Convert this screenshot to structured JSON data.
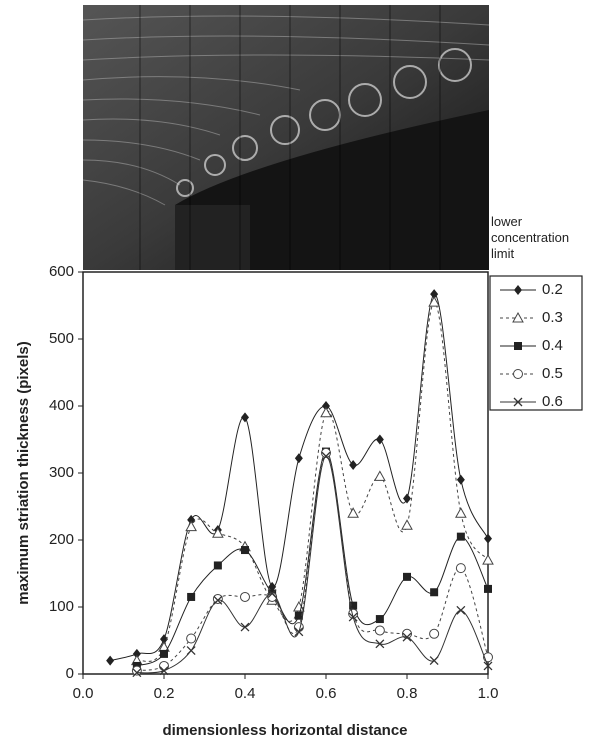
{
  "chart_data": {
    "type": "line",
    "xlabel": "dimensionless horizontal distance",
    "ylabel": "maximum striation thickness (pixels)",
    "legend_title": "lower concentration limit",
    "x": [
      0.067,
      0.133,
      0.2,
      0.267,
      0.333,
      0.4,
      0.467,
      0.533,
      0.6,
      0.667,
      0.733,
      0.8,
      0.867,
      0.933,
      1.0
    ],
    "series": [
      {
        "name": "0.2",
        "color": "#222",
        "marker": "diamond",
        "dash": "solid",
        "values": [
          20,
          30,
          52,
          230,
          215,
          383,
          130,
          322,
          400,
          312,
          350,
          262,
          567,
          290,
          202
        ]
      },
      {
        "name": "0.3",
        "color": "#444",
        "marker": "triangle",
        "dash": "dotted",
        "values": [
          null,
          20,
          40,
          220,
          210,
          190,
          110,
          100,
          390,
          240,
          295,
          222,
          555,
          240,
          170
        ]
      },
      {
        "name": "0.4",
        "color": "#222",
        "marker": "square",
        "dash": "solid",
        "values": [
          null,
          12,
          30,
          115,
          162,
          185,
          120,
          87,
          332,
          102,
          82,
          145,
          122,
          205,
          127
        ]
      },
      {
        "name": "0.5",
        "color": "#444",
        "marker": "circle",
        "dash": "dotted",
        "values": [
          null,
          5,
          12,
          53,
          112,
          115,
          115,
          70,
          330,
          90,
          65,
          60,
          60,
          158,
          25
        ]
      },
      {
        "name": "0.6",
        "color": "#333",
        "marker": "cross",
        "dash": "solid",
        "values": [
          null,
          2,
          5,
          35,
          110,
          70,
          120,
          63,
          325,
          85,
          45,
          55,
          20,
          95,
          12
        ]
      }
    ],
    "xlim": [
      0,
      1
    ],
    "xticks": [
      {
        "value": 0,
        "label": "0.0"
      },
      0.2,
      0.4,
      0.6,
      0.8,
      {
        "value": 1,
        "label": "1.0"
      }
    ],
    "ylim": [
      0,
      600
    ],
    "yticks": [
      0,
      100,
      200,
      300,
      400,
      500,
      600
    ],
    "grid": false,
    "legend_position": "upper right"
  }
}
